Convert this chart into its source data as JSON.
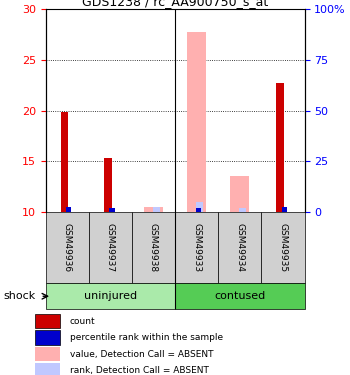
{
  "title": "GDS1238 / rc_AA900750_s_at",
  "samples": [
    "GSM49936",
    "GSM49937",
    "GSM49938",
    "GSM49933",
    "GSM49934",
    "GSM49935"
  ],
  "red_bars": [
    19.9,
    15.3,
    0,
    0,
    0,
    22.7
  ],
  "blue_bars": [
    10.5,
    10.4,
    0,
    10.4,
    0,
    10.5
  ],
  "pink_bars": [
    0,
    0,
    10.5,
    27.8,
    13.5,
    0
  ],
  "lightblue_bars": [
    0,
    0,
    10.5,
    11.0,
    10.4,
    0
  ],
  "ylim": [
    10,
    30
  ],
  "yticks_left": [
    10,
    15,
    20,
    25,
    30
  ],
  "yticks_right": [
    10,
    15,
    20,
    25,
    30
  ],
  "ytick_right_labels": [
    "0",
    "25",
    "50",
    "75",
    "100%"
  ],
  "gridlines": [
    15,
    20,
    25
  ],
  "factor_label": "shock",
  "group_spans": [
    {
      "start": 0,
      "end": 2,
      "label": "uninjured",
      "color": "#aaeaaa"
    },
    {
      "start": 3,
      "end": 5,
      "label": "contused",
      "color": "#55cc55"
    }
  ],
  "sample_box_color": "#d0d0d0",
  "title_fontsize": 9,
  "tick_fontsize": 8,
  "sample_fontsize": 6.5,
  "group_fontsize": 8,
  "legend_fontsize": 6.5,
  "bar_colors": {
    "red": "#cc0000",
    "blue": "#0000cc",
    "pink": "#ffb0b0",
    "lightblue": "#c0c8ff"
  },
  "legend_items": [
    {
      "color": "#cc0000",
      "label": "count"
    },
    {
      "color": "#0000cc",
      "label": "percentile rank within the sample"
    },
    {
      "color": "#ffb0b0",
      "label": "value, Detection Call = ABSENT"
    },
    {
      "color": "#c0c8ff",
      "label": "rank, Detection Call = ABSENT"
    }
  ]
}
